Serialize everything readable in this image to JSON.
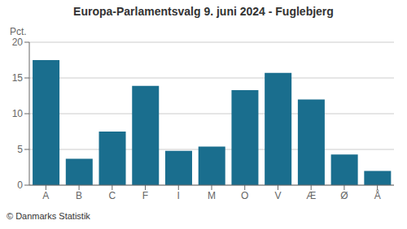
{
  "chart_data": {
    "type": "bar",
    "title": "Europa-Parlamentsvalg 9. juni 2024 - Fuglebjerg",
    "ylabel": "Pct.",
    "annotations": [
      "© Danmarks Statistik"
    ],
    "categories": [
      "A",
      "B",
      "C",
      "F",
      "I",
      "M",
      "O",
      "V",
      "Æ",
      "Ø",
      "Å"
    ],
    "values": [
      17.5,
      3.7,
      7.5,
      13.9,
      4.8,
      5.4,
      13.3,
      15.7,
      12.0,
      4.3,
      2.0
    ],
    "color": "#1a6e8e",
    "ylim": [
      0,
      20
    ],
    "yticks": [
      0,
      5,
      10,
      15,
      20
    ],
    "grid": true
  }
}
